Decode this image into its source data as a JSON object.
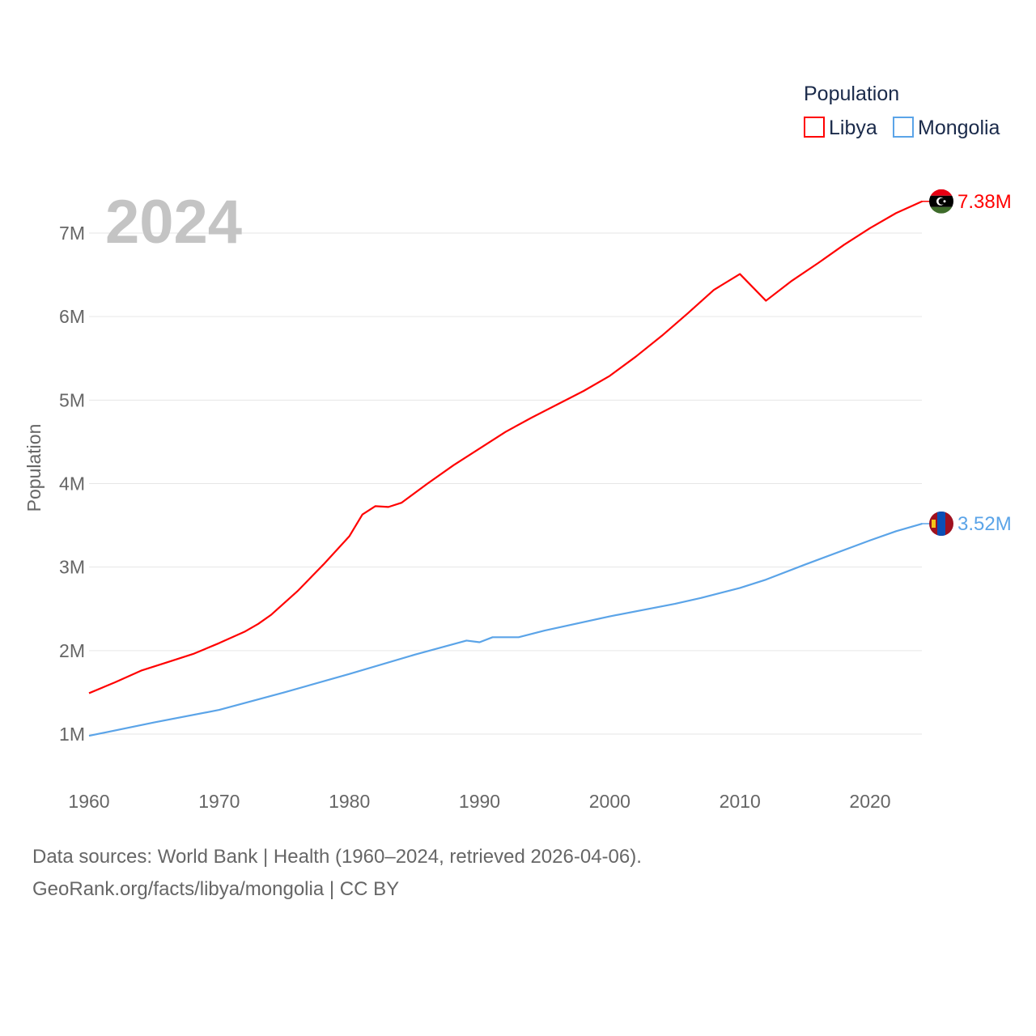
{
  "chart_data": {
    "type": "line",
    "title": "",
    "year_label": "2024",
    "xlabel": "",
    "ylabel": "Population",
    "xlim": [
      1960,
      2024
    ],
    "ylim": [
      1000000,
      7000000
    ],
    "x_ticks": [
      "1960",
      "1970",
      "1980",
      "1990",
      "2000",
      "2010",
      "2020"
    ],
    "y_ticks": [
      {
        "value": 1000000,
        "label": "1M"
      },
      {
        "value": 2000000,
        "label": "2M"
      },
      {
        "value": 3000000,
        "label": "3M"
      },
      {
        "value": 4000000,
        "label": "4M"
      },
      {
        "value": 5000000,
        "label": "5M"
      },
      {
        "value": 6000000,
        "label": "6M"
      },
      {
        "value": 7000000,
        "label": "7M"
      }
    ],
    "grid": true,
    "legend": {
      "title": "Population",
      "position": "top-right"
    },
    "series": [
      {
        "name": "Libya",
        "color": "#ff0000",
        "end_label": "7.38M",
        "flag": "libya-flag",
        "x": [
          1960,
          1962,
          1964,
          1966,
          1968,
          1970,
          1972,
          1973,
          1974,
          1976,
          1978,
          1980,
          1981,
          1982,
          1983,
          1984,
          1986,
          1988,
          1990,
          1992,
          1994,
          1996,
          1998,
          2000,
          2002,
          2004,
          2006,
          2008,
          2010,
          2012,
          2014,
          2016,
          2018,
          2020,
          2022,
          2024
        ],
        "values": [
          1.49,
          1.62,
          1.76,
          1.86,
          1.96,
          2.09,
          2.23,
          2.32,
          2.43,
          2.71,
          3.03,
          3.37,
          3.63,
          3.73,
          3.72,
          3.77,
          4.0,
          4.22,
          4.42,
          4.62,
          4.79,
          4.95,
          5.11,
          5.29,
          5.52,
          5.77,
          6.04,
          6.32,
          6.51,
          6.19,
          6.43,
          6.64,
          6.86,
          7.06,
          7.24,
          7.38
        ],
        "unit": "millions"
      },
      {
        "name": "Mongolia",
        "color": "#5ba4e8",
        "end_label": "3.52M",
        "flag": "mongolia-flag",
        "x": [
          1960,
          1965,
          1970,
          1975,
          1980,
          1985,
          1989,
          1990,
          1991,
          1993,
          1995,
          2000,
          2005,
          2007,
          2010,
          2012,
          2015,
          2020,
          2022,
          2024
        ],
        "values": [
          0.98,
          1.14,
          1.29,
          1.5,
          1.72,
          1.95,
          2.12,
          2.1,
          2.16,
          2.16,
          2.24,
          2.41,
          2.56,
          2.63,
          2.75,
          2.85,
          3.03,
          3.32,
          3.43,
          3.52
        ],
        "unit": "millions"
      }
    ]
  },
  "footer": {
    "line1": "Data sources: World Bank | Health (1960–2024, retrieved 2026-04-06).",
    "line2": "GeoRank.org/facts/libya/mongolia | CC BY"
  }
}
